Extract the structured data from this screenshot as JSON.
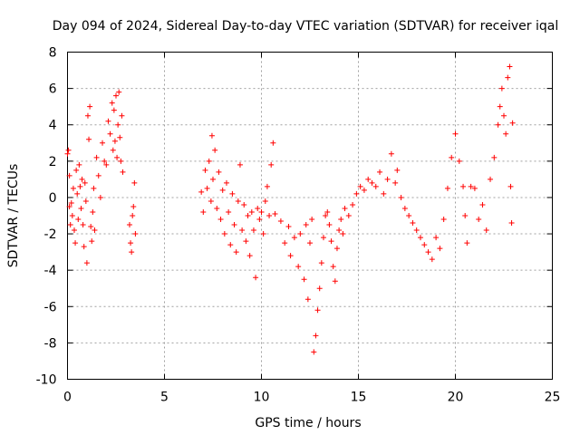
{
  "chart_data": {
    "type": "scatter",
    "title": "Day 094 of 2024, Sidereal Day-to-day VTEC variation (SDTVAR) for receiver iqal",
    "xlabel": "GPS time / hours",
    "ylabel": "SDTVAR / TECUs",
    "xlim": [
      0,
      25
    ],
    "ylim": [
      -10,
      8
    ],
    "xticks": [
      0,
      5,
      10,
      15,
      20,
      25
    ],
    "yticks": [
      -10,
      -8,
      -6,
      -4,
      -2,
      0,
      2,
      4,
      6,
      8
    ],
    "grid": true,
    "marker": "+",
    "color": "#ff0000",
    "series": [
      {
        "name": "SDTVAR",
        "points": [
          [
            0.0,
            2.4
          ],
          [
            0.05,
            2.6
          ],
          [
            0.1,
            1.2
          ],
          [
            0.1,
            -0.5
          ],
          [
            0.15,
            -1.5
          ],
          [
            0.2,
            -0.3
          ],
          [
            0.25,
            -1.0
          ],
          [
            0.3,
            0.5
          ],
          [
            0.35,
            -1.8
          ],
          [
            0.4,
            -2.5
          ],
          [
            0.45,
            1.5
          ],
          [
            0.5,
            0.2
          ],
          [
            0.55,
            -1.2
          ],
          [
            0.6,
            1.8
          ],
          [
            0.65,
            0.6
          ],
          [
            0.7,
            -0.6
          ],
          [
            0.75,
            1.0
          ],
          [
            0.8,
            -1.5
          ],
          [
            0.85,
            -2.7
          ],
          [
            0.9,
            0.8
          ],
          [
            0.95,
            -0.2
          ],
          [
            1.0,
            -3.6
          ],
          [
            1.05,
            4.5
          ],
          [
            1.1,
            3.2
          ],
          [
            1.15,
            5.0
          ],
          [
            1.2,
            -1.6
          ],
          [
            1.25,
            -2.4
          ],
          [
            1.3,
            -0.8
          ],
          [
            1.35,
            0.5
          ],
          [
            1.4,
            -1.8
          ],
          [
            1.5,
            2.2
          ],
          [
            1.6,
            1.2
          ],
          [
            1.7,
            0.0
          ],
          [
            1.8,
            3.0
          ],
          [
            1.9,
            2.0
          ],
          [
            2.0,
            1.8
          ],
          [
            2.1,
            4.2
          ],
          [
            2.2,
            3.5
          ],
          [
            2.3,
            5.2
          ],
          [
            2.35,
            2.6
          ],
          [
            2.4,
            4.8
          ],
          [
            2.45,
            3.1
          ],
          [
            2.5,
            5.6
          ],
          [
            2.55,
            2.2
          ],
          [
            2.6,
            4.0
          ],
          [
            2.65,
            5.8
          ],
          [
            2.7,
            3.3
          ],
          [
            2.75,
            2.0
          ],
          [
            2.8,
            4.5
          ],
          [
            2.85,
            1.4
          ],
          [
            3.2,
            -1.5
          ],
          [
            3.25,
            -2.5
          ],
          [
            3.3,
            -3.0
          ],
          [
            3.35,
            -1.0
          ],
          [
            3.4,
            -0.5
          ],
          [
            3.45,
            0.8
          ],
          [
            3.5,
            -2.0
          ],
          [
            6.9,
            0.3
          ],
          [
            7.0,
            -0.8
          ],
          [
            7.1,
            1.5
          ],
          [
            7.2,
            0.5
          ],
          [
            7.3,
            2.0
          ],
          [
            7.4,
            -0.2
          ],
          [
            7.45,
            3.4
          ],
          [
            7.5,
            1.0
          ],
          [
            7.6,
            2.6
          ],
          [
            7.7,
            -0.6
          ],
          [
            7.8,
            1.4
          ],
          [
            7.9,
            -1.2
          ],
          [
            8.0,
            0.4
          ],
          [
            8.1,
            -2.0
          ],
          [
            8.2,
            0.8
          ],
          [
            8.3,
            -0.8
          ],
          [
            8.4,
            -2.6
          ],
          [
            8.5,
            0.2
          ],
          [
            8.6,
            -1.5
          ],
          [
            8.7,
            -3.0
          ],
          [
            8.8,
            -0.2
          ],
          [
            8.9,
            1.8
          ],
          [
            9.0,
            -1.8
          ],
          [
            9.1,
            -0.4
          ],
          [
            9.2,
            -2.4
          ],
          [
            9.3,
            -1.0
          ],
          [
            9.4,
            -3.2
          ],
          [
            9.5,
            -0.8
          ],
          [
            9.6,
            -1.8
          ],
          [
            9.7,
            -4.4
          ],
          [
            9.8,
            -0.6
          ],
          [
            9.9,
            -1.2
          ],
          [
            10.0,
            -0.8
          ],
          [
            10.1,
            -2.0
          ],
          [
            10.2,
            -0.2
          ],
          [
            10.3,
            0.6
          ],
          [
            10.4,
            -1.0
          ],
          [
            10.5,
            1.8
          ],
          [
            10.6,
            3.0
          ],
          [
            10.7,
            -0.9
          ],
          [
            11.0,
            -1.3
          ],
          [
            11.2,
            -2.5
          ],
          [
            11.4,
            -1.6
          ],
          [
            11.5,
            -3.2
          ],
          [
            11.7,
            -2.2
          ],
          [
            11.9,
            -3.8
          ],
          [
            12.0,
            -2.0
          ],
          [
            12.2,
            -4.5
          ],
          [
            12.3,
            -1.5
          ],
          [
            12.4,
            -5.6
          ],
          [
            12.5,
            -2.5
          ],
          [
            12.6,
            -1.2
          ],
          [
            12.7,
            -8.5
          ],
          [
            12.8,
            -7.6
          ],
          [
            12.9,
            -6.2
          ],
          [
            13.0,
            -5.0
          ],
          [
            13.1,
            -3.6
          ],
          [
            13.2,
            -2.2
          ],
          [
            13.3,
            -1.0
          ],
          [
            13.4,
            -0.8
          ],
          [
            13.5,
            -1.5
          ],
          [
            13.6,
            -2.4
          ],
          [
            13.7,
            -3.8
          ],
          [
            13.8,
            -4.6
          ],
          [
            13.9,
            -2.8
          ],
          [
            14.0,
            -1.8
          ],
          [
            14.1,
            -1.2
          ],
          [
            14.2,
            -2.0
          ],
          [
            14.3,
            -0.6
          ],
          [
            14.5,
            -1.0
          ],
          [
            14.7,
            -0.4
          ],
          [
            14.9,
            0.2
          ],
          [
            15.1,
            0.6
          ],
          [
            15.3,
            0.4
          ],
          [
            15.5,
            1.0
          ],
          [
            15.7,
            0.8
          ],
          [
            15.9,
            0.6
          ],
          [
            16.1,
            1.4
          ],
          [
            16.3,
            0.2
          ],
          [
            16.5,
            1.0
          ],
          [
            16.7,
            2.4
          ],
          [
            16.9,
            0.8
          ],
          [
            17.0,
            1.5
          ],
          [
            17.2,
            0.0
          ],
          [
            17.4,
            -0.6
          ],
          [
            17.6,
            -1.0
          ],
          [
            17.8,
            -1.4
          ],
          [
            18.0,
            -1.8
          ],
          [
            18.2,
            -2.2
          ],
          [
            18.4,
            -2.6
          ],
          [
            18.6,
            -3.0
          ],
          [
            18.8,
            -3.4
          ],
          [
            19.0,
            -2.2
          ],
          [
            19.2,
            -2.8
          ],
          [
            19.4,
            -1.2
          ],
          [
            19.6,
            0.5
          ],
          [
            19.8,
            2.2
          ],
          [
            20.0,
            3.5
          ],
          [
            20.2,
            2.0
          ],
          [
            20.4,
            0.6
          ],
          [
            20.5,
            -1.0
          ],
          [
            20.6,
            -2.5
          ],
          [
            20.8,
            0.6
          ],
          [
            21.0,
            0.5
          ],
          [
            21.2,
            -1.2
          ],
          [
            21.4,
            -0.4
          ],
          [
            21.6,
            -1.8
          ],
          [
            21.8,
            1.0
          ],
          [
            22.0,
            2.2
          ],
          [
            22.2,
            4.0
          ],
          [
            22.3,
            5.0
          ],
          [
            22.4,
            6.0
          ],
          [
            22.5,
            4.5
          ],
          [
            22.6,
            3.5
          ],
          [
            22.7,
            6.6
          ],
          [
            22.8,
            7.2
          ],
          [
            22.85,
            0.6
          ],
          [
            22.9,
            -1.4
          ],
          [
            22.95,
            4.1
          ]
        ]
      }
    ]
  }
}
